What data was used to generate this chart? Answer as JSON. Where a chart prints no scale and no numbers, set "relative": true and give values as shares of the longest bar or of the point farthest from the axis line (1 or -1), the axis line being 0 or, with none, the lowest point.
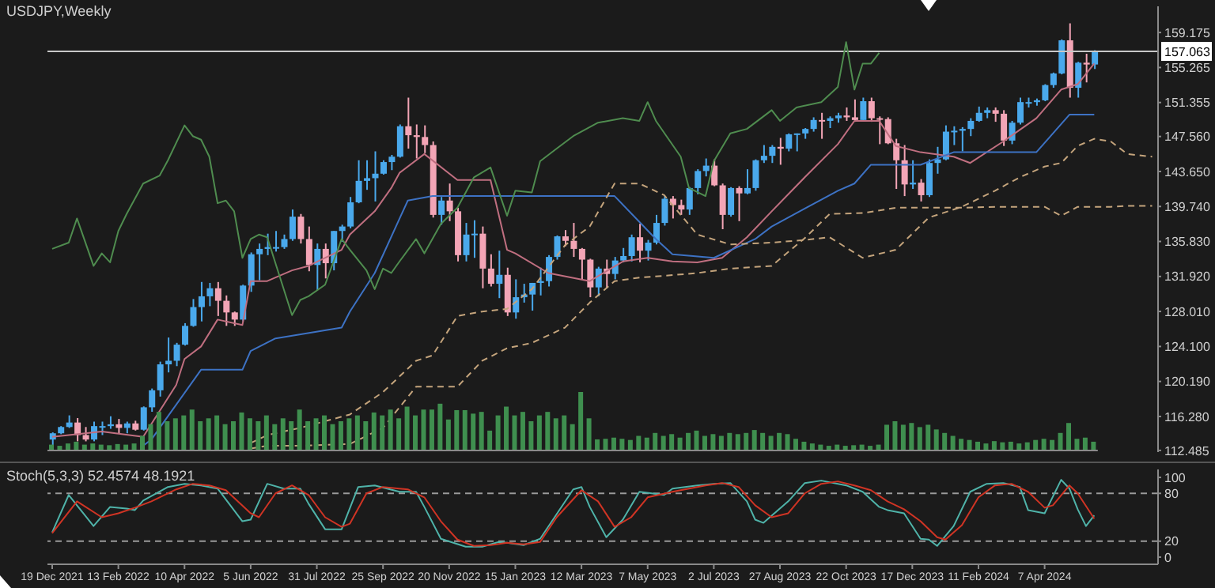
{
  "chart_data": [
    {
      "type": "candlestick",
      "title": "USDJPY,Weekly",
      "tick_labels": "y",
      "colors": [
        "#4aa9ec",
        "#4aa9ec",
        "#4aa9ec",
        "#f3a5b6",
        "#f3a5b6",
        "#4aa9ec",
        "#4aa9ec",
        "#4aa9ec",
        "#f3a5b6",
        "#4aa9ec",
        "#f3a5b6",
        "#4aa9ec",
        "#4aa9ec",
        "#4aa9ec",
        "#4aa9ec",
        "#4aa9ec",
        "#4aa9ec",
        "#4aa9ec",
        "#4aa9ec",
        "#4aa9ec",
        "#f3a5b6",
        "#f3a5b6",
        "#f3a5b6",
        "#4aa9ec",
        "#4aa9ec",
        "#4aa9ec",
        "#4aa9ec",
        "#4aa9ec",
        "#4aa9ec",
        "#4aa9ec",
        "#f3a5b6",
        "#f3a5b6",
        "#4aa9ec",
        "#f3a5b6",
        "#4aa9ec",
        "#4aa9ec",
        "#4aa9ec",
        "#4aa9ec",
        "#4aa9ec",
        "#4aa9ec",
        "#4aa9ec",
        "#4aa9ec",
        "#4aa9ec",
        "#f3a5b6",
        "#f3a5b6",
        "#f3a5b6",
        "#f3a5b6",
        "#4aa9ec",
        "#f3a5b6",
        "#f3a5b6",
        "#4aa9ec",
        "#4aa9ec",
        "#f3a5b6",
        "#f3a5b6",
        "#4aa9ec",
        "#f3a5b6",
        "#4aa9ec",
        "#4aa9ec",
        "#4aa9ec",
        "#4aa9ec",
        "#4aa9ec",
        "#4aa9ec",
        "#f3a5b6",
        "#f3a5b6",
        "#f3a5b6",
        "#f3a5b6",
        "#4aa9ec",
        "#f3a5b6",
        "#4aa9ec",
        "#4aa9ec",
        "#4aa9ec",
        "#f3a5b6",
        "#4aa9ec",
        "#4aa9ec",
        "#4aa9ec",
        "#f3a5b6",
        "#f3a5b6",
        "#4aa9ec",
        "#4aa9ec",
        "#4aa9ec",
        "#f3a5b6",
        "#f3a5b6",
        "#4aa9ec",
        "#f3a5b6",
        "#4aa9ec",
        "#4aa9ec",
        "#4aa9ec",
        "#4aa9ec",
        "#f3a5b6",
        "#4aa9ec",
        "#4aa9ec",
        "#4aa9ec",
        "#4aa9ec",
        "#f3a5b6",
        "#4aa9ec",
        "#4aa9ec",
        "#f3a5b6",
        "#f3a5b6",
        "#4aa9ec",
        "#f3a5b6",
        "#f3a5b6",
        "#f3a5b6",
        "#f3a5b6",
        "#f3a5b6",
        "#4aa9ec",
        "#f3a5b6",
        "#4aa9ec",
        "#4aa9ec",
        "#4aa9ec",
        "#4aa9ec",
        "#4aa9ec",
        "#4aa9ec",
        "#4aa9ec",
        "#4aa9ec",
        "#f3a5b6",
        "#f3a5b6",
        "#4aa9ec",
        "#4aa9ec",
        "#4aa9ec",
        "#4aa9ec",
        "#4aa9ec",
        "#4aa9ec",
        "#4aa9ec",
        "#f3a5b6",
        "#4aa9ec",
        "#f3a5b6",
        "#4aa9ec"
      ],
      "xlim": [
        "2021-12-15",
        "2024-07-12"
      ],
      "ylim": [
        112.3,
        162.1
      ],
      "yticks": [
        112.485,
        {
          "value": 116.28,
          "label": "116.280"
        },
        {
          "value": 120.19,
          "label": "120.190"
        },
        {
          "value": 124.1,
          "label": "124.100"
        },
        {
          "value": 128.01,
          "label": "128.010"
        },
        {
          "value": 131.92,
          "label": "131.920"
        },
        {
          "value": 135.83,
          "label": "135.830"
        },
        {
          "value": 139.74,
          "label": "139.740"
        },
        {
          "value": 143.65,
          "label": "143.650"
        },
        {
          "value": 147.56,
          "label": "147.560"
        },
        151.355,
        155.265,
        159.175
      ],
      "ref_lines": [
        {
          "axis": "y",
          "value": 157.063,
          "label": "157.063",
          "color": "#c8c8c8"
        }
      ],
      "x": [
        "2021-12-19",
        "2021-12-26",
        "2022-01-02",
        "2022-01-09",
        "2022-01-16",
        "2022-01-23",
        "2022-01-30",
        "2022-02-06",
        "2022-02-13",
        "2022-02-20",
        "2022-02-27",
        "2022-03-06",
        "2022-03-13",
        "2022-03-20",
        "2022-03-27",
        "2022-04-03",
        "2022-04-10",
        "2022-04-17",
        "2022-04-24",
        "2022-05-01",
        "2022-05-08",
        "2022-05-15",
        "2022-05-22",
        "2022-05-29",
        "2022-06-05",
        "2022-06-12",
        "2022-06-19",
        "2022-06-26",
        "2022-07-03",
        "2022-07-10",
        "2022-07-17",
        "2022-07-24",
        "2022-07-31",
        "2022-08-07",
        "2022-08-14",
        "2022-08-21",
        "2022-08-28",
        "2022-09-04",
        "2022-09-11",
        "2022-09-18",
        "2022-09-25",
        "2022-10-02",
        "2022-10-09",
        "2022-10-16",
        "2022-10-23",
        "2022-10-30",
        "2022-11-06",
        "2022-11-13",
        "2022-11-20",
        "2022-11-27",
        "2022-12-04",
        "2022-12-11",
        "2022-12-18",
        "2022-12-25",
        "2023-01-01",
        "2023-01-08",
        "2023-01-15",
        "2023-01-22",
        "2023-01-29",
        "2023-02-05",
        "2023-02-12",
        "2023-02-19",
        "2023-02-26",
        "2023-03-05",
        "2023-03-12",
        "2023-03-19",
        "2023-03-26",
        "2023-04-02",
        "2023-04-09",
        "2023-04-16",
        "2023-04-23",
        "2023-04-30",
        "2023-05-07",
        "2023-05-14",
        "2023-05-21",
        "2023-05-28",
        "2023-06-04",
        "2023-06-11",
        "2023-06-18",
        "2023-06-25",
        "2023-07-02",
        "2023-07-09",
        "2023-07-16",
        "2023-07-23",
        "2023-07-30",
        "2023-08-06",
        "2023-08-13",
        "2023-08-20",
        "2023-08-27",
        "2023-09-03",
        "2023-09-10",
        "2023-09-17",
        "2023-09-24",
        "2023-10-01",
        "2023-10-08",
        "2023-10-15",
        "2023-10-22",
        "2023-10-29",
        "2023-11-05",
        "2023-11-12",
        "2023-11-19",
        "2023-11-26",
        "2023-12-03",
        "2023-12-10",
        "2023-12-17",
        "2023-12-24",
        "2023-12-31",
        "2024-01-07",
        "2024-01-14",
        "2024-01-21",
        "2024-01-28",
        "2024-02-04",
        "2024-02-11",
        "2024-02-18",
        "2024-02-25",
        "2024-03-03",
        "2024-03-10",
        "2024-03-17",
        "2024-03-24",
        "2024-03-31",
        "2024-04-07",
        "2024-04-14",
        "2024-04-21",
        "2024-04-28",
        "2024-05-05",
        "2024-05-12",
        "2024-05-19"
      ],
      "ohlc": [
        [
          113.7,
          114.5,
          113.1,
          114.4
        ],
        [
          114.4,
          115.2,
          114.3,
          115.1
        ],
        [
          115.1,
          116.4,
          115.0,
          115.6
        ],
        [
          115.6,
          116.1,
          113.5,
          114.2
        ],
        [
          114.2,
          115.1,
          113.5,
          113.7
        ],
        [
          113.7,
          115.7,
          113.5,
          115.2
        ],
        [
          115.2,
          115.7,
          114.2,
          115.2
        ],
        [
          115.2,
          116.3,
          114.9,
          115.4
        ],
        [
          115.4,
          116.0,
          114.4,
          115.0
        ],
        [
          115.0,
          115.7,
          114.4,
          115.5
        ],
        [
          115.5,
          115.8,
          114.7,
          114.8
        ],
        [
          114.8,
          117.4,
          114.7,
          117.3
        ],
        [
          117.3,
          119.4,
          116.8,
          119.2
        ],
        [
          119.2,
          122.4,
          118.5,
          122.1
        ],
        [
          122.1,
          125.1,
          121.2,
          122.5
        ],
        [
          122.5,
          124.5,
          121.9,
          124.3
        ],
        [
          124.3,
          126.7,
          124.2,
          126.4
        ],
        [
          126.4,
          129.4,
          126.3,
          128.5
        ],
        [
          128.5,
          131.3,
          126.9,
          129.7
        ],
        [
          129.7,
          131.2,
          128.6,
          130.6
        ],
        [
          130.6,
          131.3,
          127.5,
          129.2
        ],
        [
          129.2,
          129.8,
          126.4,
          127.9
        ],
        [
          127.9,
          128.0,
          126.4,
          127.1
        ],
        [
          127.1,
          131.0,
          126.9,
          130.9
        ],
        [
          130.9,
          134.6,
          130.2,
          134.4
        ],
        [
          134.4,
          135.6,
          131.5,
          135.0
        ],
        [
          135.0,
          136.7,
          134.3,
          135.2
        ],
        [
          135.2,
          137.0,
          134.7,
          135.2
        ],
        [
          135.2,
          136.6,
          135.0,
          136.1
        ],
        [
          136.1,
          139.4,
          135.9,
          138.6
        ],
        [
          138.6,
          138.9,
          135.6,
          136.1
        ],
        [
          136.1,
          137.5,
          132.5,
          133.2
        ],
        [
          133.2,
          135.6,
          130.4,
          135.0
        ],
        [
          135.0,
          135.6,
          131.7,
          133.4
        ],
        [
          133.4,
          137.0,
          132.6,
          137.0
        ],
        [
          137.0,
          137.7,
          135.8,
          137.5
        ],
        [
          137.5,
          140.8,
          137.3,
          140.2
        ],
        [
          140.2,
          144.9,
          140.1,
          142.6
        ],
        [
          142.6,
          144.9,
          141.6,
          142.9
        ],
        [
          142.9,
          145.9,
          140.3,
          143.4
        ],
        [
          143.4,
          144.9,
          143.3,
          144.7
        ],
        [
          144.7,
          145.5,
          143.8,
          145.3
        ],
        [
          145.3,
          148.9,
          145.2,
          148.7
        ],
        [
          148.7,
          151.9,
          146.2,
          147.7
        ],
        [
          147.7,
          148.9,
          145.1,
          147.5
        ],
        [
          147.5,
          148.8,
          145.7,
          146.6
        ],
        [
          146.6,
          147.0,
          138.5,
          138.8
        ],
        [
          138.8,
          140.8,
          137.7,
          140.4
        ],
        [
          140.4,
          142.3,
          138.1,
          139.2
        ],
        [
          139.2,
          139.6,
          133.6,
          134.3
        ],
        [
          134.3,
          137.9,
          133.6,
          136.6
        ],
        [
          136.6,
          138.2,
          134.0,
          136.7
        ],
        [
          136.7,
          137.5,
          130.6,
          132.8
        ],
        [
          132.8,
          134.4,
          130.8,
          131.1
        ],
        [
          131.1,
          134.8,
          129.5,
          132.1
        ],
        [
          132.1,
          132.9,
          127.5,
          127.9
        ],
        [
          127.9,
          131.6,
          127.2,
          129.6
        ],
        [
          129.6,
          131.1,
          129.0,
          129.9
        ],
        [
          129.9,
          131.2,
          128.1,
          131.2
        ],
        [
          131.2,
          132.9,
          129.8,
          131.4
        ],
        [
          131.4,
          134.3,
          130.8,
          134.1
        ],
        [
          134.1,
          136.5,
          133.8,
          136.4
        ],
        [
          136.4,
          137.1,
          135.3,
          135.9
        ],
        [
          135.9,
          137.9,
          134.1,
          135.0
        ],
        [
          135.0,
          135.1,
          131.6,
          133.8
        ],
        [
          133.8,
          133.9,
          129.6,
          130.7
        ],
        [
          130.7,
          133.0,
          129.7,
          132.8
        ],
        [
          132.8,
          133.8,
          130.6,
          132.2
        ],
        [
          132.2,
          134.1,
          131.6,
          133.7
        ],
        [
          133.7,
          135.1,
          133.5,
          134.2
        ],
        [
          134.2,
          136.6,
          133.6,
          136.3
        ],
        [
          136.3,
          137.8,
          133.5,
          134.8
        ],
        [
          134.8,
          136.0,
          133.7,
          135.7
        ],
        [
          135.7,
          138.8,
          135.5,
          137.9
        ],
        [
          137.9,
          140.9,
          137.6,
          140.6
        ],
        [
          140.6,
          140.9,
          138.4,
          139.9
        ],
        [
          139.9,
          140.5,
          138.8,
          139.4
        ],
        [
          139.4,
          141.9,
          138.8,
          141.8
        ],
        [
          141.8,
          143.9,
          141.1,
          143.7
        ],
        [
          143.7,
          145.1,
          143.1,
          144.3
        ],
        [
          144.3,
          145.0,
          142.0,
          142.1
        ],
        [
          142.1,
          142.3,
          137.2,
          138.8
        ],
        [
          138.8,
          141.9,
          138.6,
          141.8
        ],
        [
          141.8,
          142.0,
          138.1,
          141.2
        ],
        [
          141.2,
          143.9,
          141.1,
          141.8
        ],
        [
          141.8,
          145.0,
          141.5,
          144.9
        ],
        [
          144.9,
          146.6,
          144.6,
          145.4
        ],
        [
          145.4,
          146.6,
          144.6,
          146.4
        ],
        [
          146.4,
          147.4,
          144.4,
          146.2
        ],
        [
          146.2,
          147.9,
          145.9,
          147.8
        ],
        [
          147.8,
          147.9,
          145.9,
          147.9
        ],
        [
          147.9,
          148.5,
          147.3,
          148.4
        ],
        [
          148.4,
          149.7,
          148.1,
          149.4
        ],
        [
          149.4,
          150.2,
          147.3,
          149.3
        ],
        [
          149.3,
          149.8,
          148.5,
          149.6
        ],
        [
          149.6,
          150.2,
          149.1,
          149.9
        ],
        [
          149.9,
          150.8,
          149.3,
          149.7
        ],
        [
          149.7,
          151.7,
          149.2,
          149.4
        ],
        [
          149.4,
          151.9,
          149.4,
          151.5
        ],
        [
          151.5,
          151.9,
          149.2,
          149.6
        ],
        [
          149.6,
          149.8,
          146.7,
          149.5
        ],
        [
          149.5,
          149.7,
          146.7,
          146.8
        ],
        [
          146.8,
          147.3,
          141.7,
          144.9
        ],
        [
          144.9,
          146.6,
          140.9,
          142.2
        ],
        [
          142.2,
          144.9,
          141.7,
          142.4
        ],
        [
          142.4,
          142.8,
          140.3,
          141.0
        ],
        [
          141.0,
          145.0,
          140.8,
          144.6
        ],
        [
          144.6,
          146.4,
          143.4,
          145.0
        ],
        [
          145.0,
          148.8,
          144.9,
          148.1
        ],
        [
          148.1,
          148.7,
          146.6,
          148.2
        ],
        [
          148.2,
          148.6,
          145.9,
          148.4
        ],
        [
          148.4,
          149.6,
          147.6,
          149.3
        ],
        [
          149.3,
          150.9,
          149.2,
          150.2
        ],
        [
          150.2,
          150.8,
          149.6,
          150.5
        ],
        [
          150.5,
          150.8,
          149.2,
          150.1
        ],
        [
          150.1,
          150.5,
          146.5,
          147.1
        ],
        [
          147.1,
          149.3,
          146.7,
          149.1
        ],
        [
          149.1,
          151.9,
          148.9,
          151.4
        ],
        [
          151.4,
          151.9,
          150.8,
          151.4
        ],
        [
          151.4,
          151.8,
          151.0,
          151.6
        ],
        [
          151.6,
          153.4,
          151.5,
          153.3
        ],
        [
          153.3,
          154.7,
          153.0,
          154.6
        ],
        [
          154.6,
          158.4,
          154.5,
          158.3
        ],
        [
          158.3,
          160.2,
          151.9,
          153.0
        ],
        [
          153.0,
          155.9,
          151.9,
          155.8
        ],
        [
          155.8,
          156.8,
          153.6,
          155.6
        ],
        [
          155.6,
          157.2,
          155.1,
          157.1
        ]
      ],
      "series": [
        {
          "type": "line",
          "color": "#c06f80",
          "x": [
            "2021-12-19",
            "2022-01-30",
            "2022-03-06",
            "2022-04-03",
            "2022-04-10",
            "2022-04-24",
            "2022-05-08",
            "2022-05-29",
            "2022-06-05",
            "2022-06-19",
            "2022-07-10",
            "2022-07-24",
            "2022-08-21",
            "2022-08-28",
            "2022-09-18",
            "2022-10-02",
            "2022-10-09",
            "2022-10-30",
            "2022-11-27",
            "2022-12-25",
            "2023-01-08",
            "2023-01-15",
            "2023-02-12",
            "2023-03-19",
            "2023-04-16",
            "2023-05-07",
            "2023-05-28",
            "2023-06-18",
            "2023-07-09",
            "2023-07-30",
            "2023-08-20",
            "2023-09-17",
            "2023-10-15",
            "2023-10-29",
            "2023-11-19",
            "2023-12-03",
            "2023-12-24",
            "2024-01-21",
            "2024-02-04",
            "2024-03-03",
            "2024-03-31",
            "2024-04-21",
            "2024-05-05",
            "2024-05-19"
          ],
          "values": [
            114.0,
            114.6,
            114.0,
            119.8,
            122.7,
            124.1,
            127.1,
            126.5,
            131.4,
            131.4,
            132.6,
            133.1,
            134.9,
            136.6,
            139.2,
            141.8,
            143.5,
            145.6,
            142.7,
            142.7,
            134.9,
            134.5,
            132.3,
            131.4,
            133.6,
            134.0,
            133.6,
            133.5,
            134.0,
            136.3,
            139.2,
            143.0,
            146.7,
            149.3,
            149.3,
            146.5,
            145.8,
            145.3,
            144.6,
            147.0,
            149.6,
            152.8,
            153.4,
            155.7
          ]
        },
        {
          "type": "line",
          "color": "#3d72c4",
          "x": [
            "2022-03-06",
            "2022-03-13",
            "2022-03-27",
            "2022-04-24",
            "2022-05-29",
            "2022-06-05",
            "2022-06-26",
            "2022-08-21",
            "2022-08-28",
            "2022-09-18",
            "2022-10-16",
            "2022-11-06",
            "2023-04-09",
            "2023-05-14",
            "2023-05-28",
            "2023-07-02",
            "2023-08-06",
            "2023-08-20",
            "2023-09-17",
            "2023-10-15",
            "2023-10-29",
            "2023-11-12",
            "2023-12-24",
            "2024-01-21",
            "2024-03-31",
            "2024-04-14",
            "2024-04-28",
            "2024-05-19"
          ],
          "values": [
            113.0,
            113.7,
            116.3,
            121.5,
            121.5,
            123.6,
            125.0,
            126.2,
            128.0,
            132.3,
            140.4,
            140.9,
            140.9,
            136.1,
            134.4,
            134.0,
            136.1,
            137.5,
            139.5,
            141.5,
            142.3,
            144.4,
            144.4,
            145.8,
            145.8,
            147.9,
            150.0,
            150.0
          ]
        },
        {
          "type": "line",
          "color": "#4f8c4f",
          "x": [
            "2021-12-19",
            "2022-01-02",
            "2022-01-09",
            "2022-01-23",
            "2022-01-30",
            "2022-02-06",
            "2022-02-13",
            "2022-02-20",
            "2022-03-06",
            "2022-03-20",
            "2022-03-27",
            "2022-04-10",
            "2022-04-17",
            "2022-04-24",
            "2022-05-01",
            "2022-05-08",
            "2022-05-15",
            "2022-05-22",
            "2022-05-29",
            "2022-06-05",
            "2022-06-12",
            "2022-06-19",
            "2022-07-10",
            "2022-07-17",
            "2022-07-24",
            "2022-08-07",
            "2022-08-21",
            "2022-08-28",
            "2022-09-11",
            "2022-09-18",
            "2022-09-25",
            "2022-10-02",
            "2022-10-09",
            "2022-10-23",
            "2022-10-30",
            "2022-11-13",
            "2022-11-27",
            "2022-12-11",
            "2022-12-25",
            "2023-01-08",
            "2023-01-15",
            "2023-01-29",
            "2023-02-05",
            "2023-02-19",
            "2023-03-05",
            "2023-03-26",
            "2023-04-16",
            "2023-04-30",
            "2023-05-07",
            "2023-05-14",
            "2023-06-04",
            "2023-06-11",
            "2023-06-25",
            "2023-07-02",
            "2023-07-16",
            "2023-07-30",
            "2023-08-20",
            "2023-08-27",
            "2023-09-10",
            "2023-10-01",
            "2023-10-15",
            "2023-10-22",
            "2023-10-29",
            "2023-11-05",
            "2023-11-12",
            "2023-11-19"
          ],
          "values": [
            135.0,
            135.7,
            138.4,
            133.1,
            134.5,
            133.5,
            137.0,
            138.9,
            142.3,
            143.2,
            144.9,
            148.8,
            147.6,
            147.2,
            145.3,
            140.1,
            140.4,
            139.2,
            134.0,
            136.1,
            136.6,
            136.3,
            127.6,
            129.3,
            129.7,
            131.0,
            136.1,
            134.9,
            132.6,
            130.5,
            132.8,
            132.3,
            133.6,
            136.1,
            134.5,
            137.8,
            139.6,
            143.0,
            144.1,
            138.7,
            141.5,
            141.3,
            144.8,
            146.2,
            147.6,
            149.1,
            149.6,
            149.3,
            151.4,
            149.3,
            145.3,
            141.8,
            140.9,
            144.8,
            147.9,
            148.4,
            150.5,
            149.3,
            150.8,
            151.4,
            153.1,
            158.1,
            152.8,
            155.7,
            155.7,
            156.9
          ]
        },
        {
          "type": "line",
          "color": "#c4a47c",
          "line_style": "dashed",
          "x": [
            "2022-06-05",
            "2022-06-19",
            "2022-07-17",
            "2022-08-28",
            "2022-09-25",
            "2022-10-23",
            "2022-11-06",
            "2022-11-27",
            "2022-12-18",
            "2023-01-08",
            "2023-01-29",
            "2023-02-26",
            "2023-03-19",
            "2023-04-09",
            "2023-04-30",
            "2023-05-21",
            "2023-06-18",
            "2023-07-16",
            "2023-08-20",
            "2023-09-17",
            "2023-10-08",
            "2023-11-05",
            "2023-12-03",
            "2023-12-31",
            "2024-01-28",
            "2024-02-25",
            "2024-03-17",
            "2024-04-07",
            "2024-04-21",
            "2024-05-05",
            "2024-05-19",
            "2024-06-02",
            "2024-06-16",
            "2024-07-07"
          ],
          "values": [
            113.3,
            114.2,
            115.0,
            116.5,
            119.0,
            122.5,
            123.1,
            127.5,
            128.0,
            128.3,
            130.5,
            135.4,
            137.5,
            142.3,
            142.3,
            141.0,
            136.6,
            135.5,
            135.7,
            136.0,
            136.3,
            134.0,
            134.9,
            138.5,
            139.7,
            141.5,
            143.0,
            144.2,
            144.6,
            146.5,
            147.3,
            147.0,
            145.6,
            145.3
          ]
        },
        {
          "type": "line",
          "color": "#c4a47c",
          "line_style": "dashed",
          "x": [
            "2022-06-05",
            "2022-06-19",
            "2022-07-17",
            "2022-08-28",
            "2022-09-25",
            "2022-10-23",
            "2022-11-06",
            "2022-11-27",
            "2022-12-18",
            "2023-01-08",
            "2023-01-29",
            "2023-02-26",
            "2023-03-19",
            "2023-04-09",
            "2023-04-30",
            "2023-05-21",
            "2023-06-18",
            "2023-07-16",
            "2023-08-20",
            "2023-09-17",
            "2023-10-08",
            "2023-11-05",
            "2023-12-03",
            "2023-12-31",
            "2024-01-28",
            "2024-02-25",
            "2024-03-17",
            "2024-04-07",
            "2024-04-21",
            "2024-05-05",
            "2024-05-19",
            "2024-06-02",
            "2024-06-16",
            "2024-07-07"
          ],
          "values": [
            112.7,
            113.0,
            113.0,
            113.2,
            115.0,
            119.6,
            119.6,
            119.6,
            122.5,
            123.9,
            124.5,
            126.2,
            129.0,
            131.4,
            131.8,
            132.0,
            132.3,
            132.8,
            133.1,
            136.2,
            138.9,
            139.0,
            139.6,
            139.6,
            139.6,
            139.7,
            139.7,
            139.7,
            138.7,
            139.7,
            139.7,
            139.7,
            139.8,
            139.8
          ]
        }
      ]
    },
    {
      "type": "bar",
      "relative": true,
      "color": "#3f8f4f",
      "tick_labels": false,
      "categories": [
        null,
        null,
        null,
        null,
        null,
        null,
        null,
        null,
        null,
        null,
        null,
        null,
        null,
        null,
        null,
        null,
        null,
        null,
        null,
        null,
        null,
        null,
        null,
        null,
        null,
        null,
        null,
        null,
        null,
        null,
        null,
        null,
        null,
        null,
        null,
        null,
        null,
        null,
        null,
        null,
        null,
        null,
        null,
        null,
        null,
        null,
        null,
        null,
        null,
        null,
        null,
        null,
        null,
        null,
        null,
        null,
        null,
        null,
        null,
        null,
        null,
        null,
        null,
        null,
        null,
        null,
        null,
        null,
        null,
        null,
        null,
        null,
        null,
        null,
        null,
        null,
        null,
        null,
        null,
        null,
        null,
        null,
        null,
        null,
        null,
        null,
        null,
        null,
        null,
        null,
        null,
        null,
        null,
        null,
        null,
        null,
        null,
        null,
        null,
        null,
        null,
        null,
        null,
        null,
        null,
        null,
        null,
        null,
        null,
        null,
        null,
        null,
        null,
        null,
        null,
        null,
        null,
        null,
        null,
        null,
        null,
        null,
        null,
        null,
        null,
        null,
        null
      ],
      "values": [
        0.1,
        0.08,
        0.12,
        0.15,
        0.1,
        0.12,
        0.1,
        0.09,
        0.11,
        0.1,
        0.12,
        0.25,
        0.45,
        0.66,
        0.5,
        0.55,
        0.6,
        0.7,
        0.5,
        0.55,
        0.6,
        0.45,
        0.5,
        0.65,
        0.55,
        0.5,
        0.6,
        0.45,
        0.55,
        0.5,
        0.7,
        0.5,
        0.55,
        0.6,
        0.45,
        0.5,
        0.55,
        0.6,
        0.5,
        0.65,
        0.6,
        0.7,
        0.55,
        0.75,
        0.6,
        0.7,
        0.7,
        0.8,
        0.53,
        0.69,
        0.69,
        0.63,
        0.66,
        0.34,
        0.6,
        0.75,
        0.6,
        0.66,
        0.5,
        0.6,
        0.66,
        0.55,
        0.6,
        0.45,
        1.0,
        0.55,
        0.19,
        0.2,
        0.22,
        0.2,
        0.18,
        0.25,
        0.22,
        0.3,
        0.25,
        0.28,
        0.22,
        0.3,
        0.34,
        0.25,
        0.28,
        0.25,
        0.3,
        0.28,
        0.3,
        0.35,
        0.3,
        0.25,
        0.3,
        0.28,
        0.2,
        0.15,
        0.12,
        0.1,
        0.08,
        0.1,
        0.08,
        0.09,
        0.1,
        0.08,
        0.1,
        0.44,
        0.5,
        0.44,
        0.47,
        0.4,
        0.44,
        0.36,
        0.3,
        0.25,
        0.2,
        0.18,
        0.15,
        0.12,
        0.16,
        0.14,
        0.15,
        0.12,
        0.14,
        0.18,
        0.2,
        0.18,
        0.3,
        0.47,
        0.2,
        0.22,
        0.15
      ]
    },
    {
      "type": "line",
      "title": "Stoch(5,3,3) 52.4574 48.1921",
      "xlim": [
        "2021-12-15",
        "2024-07-12"
      ],
      "xticks": [
        {
          "value": "2021-12-19",
          "label": "19 Dec 2021"
        },
        {
          "value": "2022-02-13",
          "label": "13 Feb 2022"
        },
        {
          "value": "2022-04-10",
          "label": "10 Apr 2022"
        },
        {
          "value": "2022-06-05",
          "label": "5 Jun 2022"
        },
        {
          "value": "2022-07-31",
          "label": "31 Jul 2022"
        },
        {
          "value": "2022-09-25",
          "label": "25 Sep 2022"
        },
        {
          "value": "2022-11-20",
          "label": "20 Nov 2022"
        },
        {
          "value": "2023-01-15",
          "label": "15 Jan 2023"
        },
        {
          "value": "2023-03-12",
          "label": "12 Mar 2023"
        },
        {
          "value": "2023-05-07",
          "label": "7 May 2023"
        },
        {
          "value": "2023-07-02",
          "label": "2 Jul 2023"
        },
        {
          "value": "2023-08-27",
          "label": "27 Aug 2023"
        },
        {
          "value": "2023-10-22",
          "label": "22 Oct 2023"
        },
        {
          "value": "2023-12-17",
          "label": "17 Dec 2023"
        },
        {
          "value": "2024-02-11",
          "label": "11 Feb 2024"
        },
        {
          "value": "2024-04-07",
          "label": "7 Apr 2024"
        }
      ],
      "ylim": [
        -9,
        110
      ],
      "yticks": [
        0,
        20,
        80,
        100
      ],
      "ref_lines": [
        {
          "axis": "y",
          "value": 80,
          "color": "#9a9a9a",
          "line_style": "dashed"
        },
        {
          "axis": "y",
          "value": 20,
          "color": "#9a9a9a",
          "line_style": "dashed"
        }
      ],
      "series": [
        {
          "color": "#4fb3a9",
          "x": [
            "2021-12-19",
            "2022-01-02",
            "2022-01-23",
            "2022-02-06",
            "2022-02-20",
            "2022-02-27",
            "2022-03-06",
            "2022-03-27",
            "2022-04-10",
            "2022-04-24",
            "2022-05-08",
            "2022-05-29",
            "2022-06-05",
            "2022-06-19",
            "2022-07-03",
            "2022-07-17",
            "2022-07-24",
            "2022-08-07",
            "2022-08-21",
            "2022-09-04",
            "2022-09-18",
            "2022-10-09",
            "2022-10-23",
            "2022-10-30",
            "2022-11-13",
            "2022-12-04",
            "2022-12-18",
            "2023-01-01",
            "2023-01-08",
            "2023-01-22",
            "2023-02-05",
            "2023-03-05",
            "2023-03-12",
            "2023-03-19",
            "2023-04-02",
            "2023-04-16",
            "2023-04-30",
            "2023-05-21",
            "2023-05-28",
            "2023-06-18",
            "2023-07-02",
            "2023-07-16",
            "2023-07-30",
            "2023-08-06",
            "2023-08-13",
            "2023-09-03",
            "2023-09-17",
            "2023-10-01",
            "2023-10-22",
            "2023-11-05",
            "2023-11-19",
            "2023-11-26",
            "2023-12-10",
            "2023-12-24",
            "2023-12-31",
            "2024-01-07",
            "2024-01-21",
            "2024-02-04",
            "2024-02-18",
            "2024-03-03",
            "2024-03-17",
            "2024-03-24",
            "2024-04-07",
            "2024-04-21",
            "2024-04-28",
            "2024-05-05",
            "2024-05-12",
            "2024-05-19"
          ],
          "values": [
            31,
            78,
            39,
            63,
            61,
            59,
            71,
            88,
            92,
            90,
            86,
            45,
            47,
            92,
            86,
            86,
            67,
            35,
            35,
            88,
            90,
            82,
            82,
            63,
            23,
            13,
            13,
            19,
            18,
            15,
            23,
            85,
            88,
            63,
            25,
            47,
            82,
            78,
            86,
            90,
            92,
            93,
            70,
            47,
            43,
            70,
            93,
            96,
            90,
            82,
            63,
            59,
            55,
            23,
            22,
            14,
            39,
            82,
            92,
            93,
            88,
            59,
            55,
            97,
            86,
            60,
            39,
            52.4574
          ]
        },
        {
          "color": "#d03424",
          "x": [
            "2021-12-19",
            "2022-01-09",
            "2022-01-30",
            "2022-02-13",
            "2022-02-27",
            "2022-03-13",
            "2022-04-03",
            "2022-04-17",
            "2022-05-01",
            "2022-05-15",
            "2022-06-05",
            "2022-06-12",
            "2022-06-26",
            "2022-07-10",
            "2022-07-24",
            "2022-08-07",
            "2022-08-21",
            "2022-08-28",
            "2022-09-11",
            "2022-09-25",
            "2022-10-16",
            "2022-10-30",
            "2022-11-13",
            "2022-11-27",
            "2022-12-11",
            "2022-12-25",
            "2023-01-08",
            "2023-01-22",
            "2023-02-05",
            "2023-02-19",
            "2023-03-12",
            "2023-03-26",
            "2023-04-09",
            "2023-04-23",
            "2023-05-07",
            "2023-05-28",
            "2023-06-11",
            "2023-06-25",
            "2023-07-09",
            "2023-07-23",
            "2023-08-06",
            "2023-08-20",
            "2023-09-03",
            "2023-09-17",
            "2023-10-01",
            "2023-10-15",
            "2023-10-29",
            "2023-11-12",
            "2023-11-26",
            "2023-12-10",
            "2023-12-24",
            "2024-01-07",
            "2024-01-14",
            "2024-01-28",
            "2024-02-11",
            "2024-02-25",
            "2024-03-10",
            "2024-03-24",
            "2024-04-07",
            "2024-04-14",
            "2024-04-28",
            "2024-05-05",
            "2024-05-19"
          ],
          "values": [
            30,
            70,
            50,
            55,
            62,
            70,
            85,
            92,
            90,
            84,
            55,
            50,
            80,
            90,
            78,
            50,
            38,
            42,
            80,
            88,
            85,
            75,
            45,
            22,
            14,
            15,
            18,
            16,
            19,
            50,
            84,
            70,
            38,
            50,
            75,
            82,
            86,
            90,
            93,
            88,
            65,
            50,
            55,
            80,
            92,
            95,
            90,
            84,
            70,
            60,
            45,
            25,
            22,
            40,
            75,
            90,
            92,
            82,
            62,
            65,
            90,
            80,
            48.1921
          ]
        }
      ]
    }
  ]
}
